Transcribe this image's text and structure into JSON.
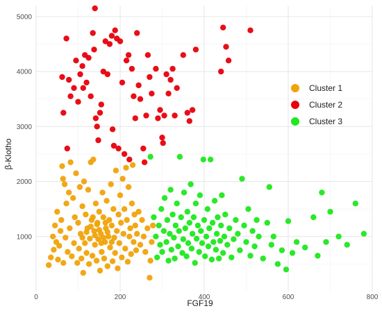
{
  "chart_data": {
    "type": "scatter",
    "xlabel": "FGF19",
    "ylabel": "β-Klotho",
    "xlim": [
      0,
      800
    ],
    "ylim": [
      0,
      5200
    ],
    "x_ticks": [
      0,
      200,
      400,
      600,
      800
    ],
    "y_ticks": [
      1000,
      2000,
      3000,
      4000,
      5000
    ],
    "grid": true,
    "legend_position": "right",
    "series": [
      {
        "name": "Cluster 1",
        "color": "#f0a30a",
        "points": [
          [
            30,
            480
          ],
          [
            35,
            620
          ],
          [
            40,
            1000
          ],
          [
            42,
            760
          ],
          [
            45,
            1200
          ],
          [
            48,
            900
          ],
          [
            50,
            1450
          ],
          [
            52,
            580
          ],
          [
            55,
            830
          ],
          [
            58,
            1100
          ],
          [
            60,
            1300
          ],
          [
            62,
            2280
          ],
          [
            64,
            2050
          ],
          [
            65,
            520
          ],
          [
            68,
            1950
          ],
          [
            70,
            980
          ],
          [
            72,
            1600
          ],
          [
            75,
            720
          ],
          [
            78,
            1800
          ],
          [
            80,
            1150
          ],
          [
            82,
            2350
          ],
          [
            85,
            640
          ],
          [
            88,
            1700
          ],
          [
            90,
            880
          ],
          [
            92,
            1350
          ],
          [
            95,
            2150
          ],
          [
            98,
            520
          ],
          [
            100,
            1250
          ],
          [
            102,
            780
          ],
          [
            104,
            1900
          ],
          [
            106,
            1050
          ],
          [
            108,
            600
          ],
          [
            110,
            1550
          ],
          [
            112,
            340
          ],
          [
            114,
            2000
          ],
          [
            116,
            880
          ],
          [
            118,
            1400
          ],
          [
            120,
            700
          ],
          [
            122,
            1150
          ],
          [
            124,
            1850
          ],
          [
            126,
            500
          ],
          [
            128,
            960
          ],
          [
            130,
            2350
          ],
          [
            132,
            1300
          ],
          [
            134,
            650
          ],
          [
            136,
            2400
          ],
          [
            138,
            1100
          ],
          [
            140,
            850
          ],
          [
            142,
            1600
          ],
          [
            144,
            560
          ],
          [
            146,
            1250
          ],
          [
            148,
            950
          ],
          [
            150,
            1450
          ],
          [
            152,
            380
          ],
          [
            154,
            1050
          ],
          [
            156,
            720
          ],
          [
            158,
            1800
          ],
          [
            160,
            1350
          ],
          [
            162,
            600
          ],
          [
            164,
            900
          ],
          [
            166,
            1150
          ],
          [
            168,
            1650
          ],
          [
            170,
            460
          ],
          [
            172,
            1000
          ],
          [
            174,
            1300
          ],
          [
            176,
            800
          ],
          [
            178,
            1950
          ],
          [
            180,
            1200
          ],
          [
            182,
            550
          ],
          [
            184,
            1500
          ],
          [
            186,
            980
          ],
          [
            188,
            700
          ],
          [
            190,
            2200
          ],
          [
            192,
            1100
          ],
          [
            194,
            420
          ],
          [
            196,
            1400
          ],
          [
            198,
            880
          ],
          [
            200,
            1750
          ],
          [
            202,
            1250
          ],
          [
            204,
            620
          ],
          [
            206,
            2050
          ],
          [
            208,
            1050
          ],
          [
            210,
            1500
          ],
          [
            212,
            780
          ],
          [
            214,
            2250
          ],
          [
            216,
            1300
          ],
          [
            218,
            540
          ],
          [
            220,
            1900
          ],
          [
            222,
            1000
          ],
          [
            224,
            1150
          ],
          [
            226,
            680
          ],
          [
            228,
            1600
          ],
          [
            230,
            2300
          ],
          [
            232,
            900
          ],
          [
            234,
            1400
          ],
          [
            236,
            1200
          ],
          [
            238,
            750
          ],
          [
            240,
            1050
          ],
          [
            244,
            1450
          ],
          [
            248,
            850
          ],
          [
            252,
            1300
          ],
          [
            256,
            1000
          ],
          [
            260,
            720
          ],
          [
            265,
            1150
          ],
          [
            270,
            250
          ],
          [
            272,
            560
          ],
          [
            275,
            900
          ],
          [
            278,
            1200
          ],
          [
            110,
            980
          ],
          [
            120,
            1080
          ],
          [
            130,
            1180
          ],
          [
            140,
            1020
          ],
          [
            150,
            1120
          ],
          [
            160,
            980
          ],
          [
            170,
            1080
          ],
          [
            180,
            900
          ],
          [
            145,
            1220
          ],
          [
            155,
            880
          ],
          [
            135,
            1350
          ],
          [
            165,
            1250
          ]
        ]
      },
      {
        "name": "Cluster 2",
        "color": "#e8000b",
        "points": [
          [
            62,
            3900
          ],
          [
            65,
            3250
          ],
          [
            72,
            4600
          ],
          [
            74,
            2600
          ],
          [
            78,
            3850
          ],
          [
            82,
            3550
          ],
          [
            90,
            3700
          ],
          [
            95,
            4200
          ],
          [
            100,
            3450
          ],
          [
            105,
            3950
          ],
          [
            110,
            4100
          ],
          [
            112,
            3700
          ],
          [
            116,
            4300
          ],
          [
            120,
            3800
          ],
          [
            125,
            4250
          ],
          [
            130,
            3550
          ],
          [
            135,
            4700
          ],
          [
            138,
            4400
          ],
          [
            140,
            5150
          ],
          [
            142,
            3150
          ],
          [
            145,
            3000
          ],
          [
            148,
            2750
          ],
          [
            152,
            3250
          ],
          [
            155,
            3400
          ],
          [
            160,
            4000
          ],
          [
            165,
            4550
          ],
          [
            170,
            3950
          ],
          [
            175,
            4500
          ],
          [
            180,
            4650
          ],
          [
            182,
            2950
          ],
          [
            185,
            2650
          ],
          [
            188,
            4750
          ],
          [
            192,
            4600
          ],
          [
            196,
            2600
          ],
          [
            200,
            4550
          ],
          [
            205,
            3800
          ],
          [
            210,
            2500
          ],
          [
            215,
            4200
          ],
          [
            220,
            4300
          ],
          [
            222,
            2400
          ],
          [
            228,
            4050
          ],
          [
            232,
            3550
          ],
          [
            236,
            3150
          ],
          [
            240,
            4700
          ],
          [
            244,
            3750
          ],
          [
            248,
            3500
          ],
          [
            255,
            2600
          ],
          [
            258,
            2350
          ],
          [
            262,
            3200
          ],
          [
            266,
            4300
          ],
          [
            270,
            3900
          ],
          [
            275,
            3600
          ],
          [
            285,
            4050
          ],
          [
            290,
            3150
          ],
          [
            295,
            3300
          ],
          [
            300,
            2800
          ],
          [
            302,
            2700
          ],
          [
            305,
            3200
          ],
          [
            310,
            3950
          ],
          [
            315,
            3600
          ],
          [
            320,
            3850
          ],
          [
            325,
            4050
          ],
          [
            330,
            3200
          ],
          [
            335,
            3700
          ],
          [
            350,
            4300
          ],
          [
            360,
            3250
          ],
          [
            365,
            3100
          ],
          [
            372,
            3300
          ],
          [
            380,
            4400
          ],
          [
            440,
            4000
          ],
          [
            445,
            4800
          ],
          [
            452,
            4450
          ],
          [
            458,
            4200
          ],
          [
            510,
            4750
          ]
        ]
      },
      {
        "name": "Cluster 3",
        "color": "#1ee81e",
        "points": [
          [
            272,
            2450
          ],
          [
            280,
            1350
          ],
          [
            285,
            1000
          ],
          [
            288,
            620
          ],
          [
            292,
            1200
          ],
          [
            295,
            850
          ],
          [
            298,
            1500
          ],
          [
            300,
            720
          ],
          [
            304,
            1100
          ],
          [
            306,
            1700
          ],
          [
            310,
            900
          ],
          [
            312,
            1300
          ],
          [
            315,
            560
          ],
          [
            318,
            1050
          ],
          [
            320,
            1850
          ],
          [
            322,
            760
          ],
          [
            325,
            1400
          ],
          [
            328,
            980
          ],
          [
            330,
            600
          ],
          [
            332,
            1200
          ],
          [
            335,
            1600
          ],
          [
            338,
            820
          ],
          [
            340,
            1100
          ],
          [
            342,
            2450
          ],
          [
            345,
            1350
          ],
          [
            348,
            700
          ],
          [
            350,
            950
          ],
          [
            352,
            1800
          ],
          [
            355,
            1150
          ],
          [
            358,
            640
          ],
          [
            360,
            1450
          ],
          [
            362,
            880
          ],
          [
            365,
            1250
          ],
          [
            368,
            1950
          ],
          [
            370,
            780
          ],
          [
            372,
            1050
          ],
          [
            375,
            1350
          ],
          [
            378,
            520
          ],
          [
            380,
            1600
          ],
          [
            382,
            960
          ],
          [
            385,
            1200
          ],
          [
            388,
            720
          ],
          [
            390,
            1750
          ],
          [
            392,
            1100
          ],
          [
            395,
            880
          ],
          [
            398,
            2400
          ],
          [
            400,
            1300
          ],
          [
            402,
            640
          ],
          [
            405,
            1000
          ],
          [
            408,
            1500
          ],
          [
            410,
            820
          ],
          [
            412,
            1150
          ],
          [
            415,
            2400
          ],
          [
            418,
            580
          ],
          [
            420,
            1250
          ],
          [
            422,
            900
          ],
          [
            425,
            1650
          ],
          [
            428,
            760
          ],
          [
            430,
            1050
          ],
          [
            432,
            1350
          ],
          [
            435,
            600
          ],
          [
            438,
            920
          ],
          [
            440,
            1200
          ],
          [
            442,
            1750
          ],
          [
            445,
            700
          ],
          [
            448,
            1000
          ],
          [
            450,
            1400
          ],
          [
            455,
            850
          ],
          [
            460,
            1150
          ],
          [
            465,
            620
          ],
          [
            470,
            950
          ],
          [
            475,
            1300
          ],
          [
            480,
            1050
          ],
          [
            485,
            750
          ],
          [
            490,
            2050
          ],
          [
            495,
            1200
          ],
          [
            500,
            900
          ],
          [
            505,
            1500
          ],
          [
            510,
            650
          ],
          [
            515,
            1100
          ],
          [
            520,
            820
          ],
          [
            525,
            1300
          ],
          [
            530,
            1000
          ],
          [
            540,
            600
          ],
          [
            550,
            1250
          ],
          [
            555,
            1900
          ],
          [
            560,
            850
          ],
          [
            565,
            1000
          ],
          [
            575,
            500
          ],
          [
            585,
            750
          ],
          [
            595,
            400
          ],
          [
            600,
            1280
          ],
          [
            610,
            700
          ],
          [
            620,
            900
          ],
          [
            640,
            800
          ],
          [
            660,
            1350
          ],
          [
            670,
            650
          ],
          [
            680,
            1800
          ],
          [
            690,
            900
          ],
          [
            700,
            1450
          ],
          [
            720,
            1000
          ],
          [
            740,
            850
          ],
          [
            760,
            1600
          ],
          [
            780,
            1050
          ]
        ]
      }
    ]
  }
}
